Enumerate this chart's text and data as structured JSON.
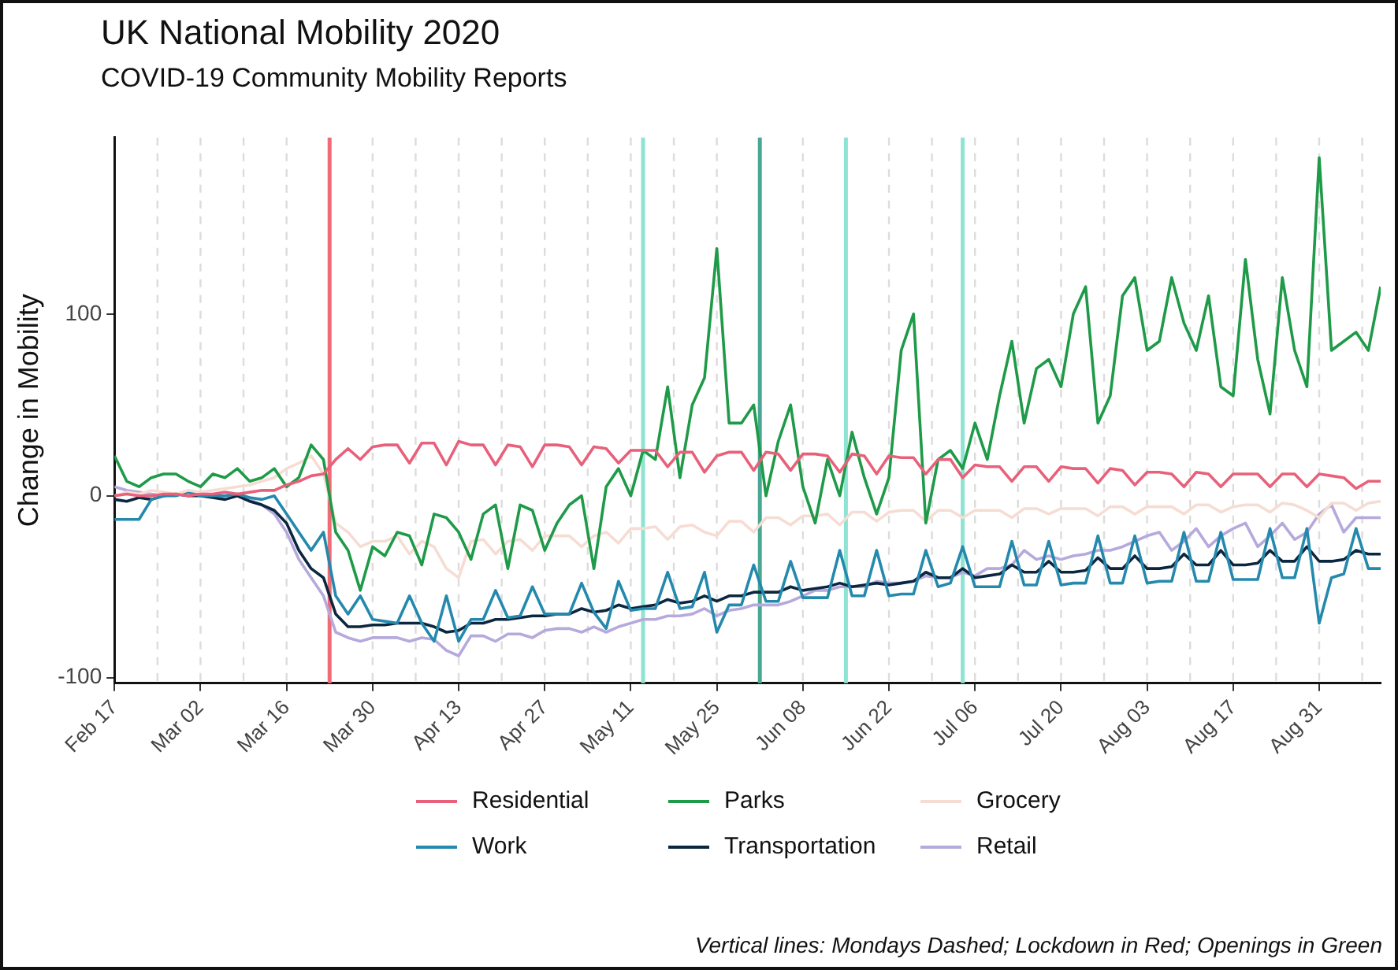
{
  "chart_data": {
    "type": "line",
    "title": "UK National Mobility 2020",
    "subtitle": "COVID-19 Community Mobility Reports",
    "ylabel": "Change in Mobility",
    "x": [
      "2020-02-17",
      "2020-02-19",
      "2020-02-21",
      "2020-02-23",
      "2020-02-25",
      "2020-02-27",
      "2020-02-29",
      "2020-03-02",
      "2020-03-04",
      "2020-03-06",
      "2020-03-08",
      "2020-03-10",
      "2020-03-12",
      "2020-03-14",
      "2020-03-16",
      "2020-03-18",
      "2020-03-20",
      "2020-03-22",
      "2020-03-24",
      "2020-03-26",
      "2020-03-28",
      "2020-03-30",
      "2020-04-01",
      "2020-04-03",
      "2020-04-05",
      "2020-04-07",
      "2020-04-09",
      "2020-04-11",
      "2020-04-13",
      "2020-04-15",
      "2020-04-17",
      "2020-04-19",
      "2020-04-21",
      "2020-04-23",
      "2020-04-25",
      "2020-04-27",
      "2020-04-29",
      "2020-05-01",
      "2020-05-03",
      "2020-05-05",
      "2020-05-07",
      "2020-05-09",
      "2020-05-11",
      "2020-05-13",
      "2020-05-15",
      "2020-05-17",
      "2020-05-19",
      "2020-05-21",
      "2020-05-23",
      "2020-05-25",
      "2020-05-27",
      "2020-05-29",
      "2020-05-31",
      "2020-06-02",
      "2020-06-04",
      "2020-06-06",
      "2020-06-08",
      "2020-06-10",
      "2020-06-12",
      "2020-06-14",
      "2020-06-16",
      "2020-06-18",
      "2020-06-20",
      "2020-06-22",
      "2020-06-24",
      "2020-06-26",
      "2020-06-28",
      "2020-06-30",
      "2020-07-02",
      "2020-07-04",
      "2020-07-06",
      "2020-07-08",
      "2020-07-10",
      "2020-07-12",
      "2020-07-14",
      "2020-07-16",
      "2020-07-18",
      "2020-07-20",
      "2020-07-22",
      "2020-07-24",
      "2020-07-26",
      "2020-07-28",
      "2020-07-30",
      "2020-08-01",
      "2020-08-03",
      "2020-08-05",
      "2020-08-07",
      "2020-08-09",
      "2020-08-11",
      "2020-08-13",
      "2020-08-15",
      "2020-08-17",
      "2020-08-19",
      "2020-08-21",
      "2020-08-23",
      "2020-08-25",
      "2020-08-27",
      "2020-08-29",
      "2020-08-31",
      "2020-09-02",
      "2020-09-04",
      "2020-09-06",
      "2020-09-08",
      "2020-09-10"
    ],
    "series": [
      {
        "name": "Residential",
        "color": "#e8607a",
        "values": [
          0,
          1,
          0,
          0,
          1,
          1,
          0,
          1,
          1,
          2,
          1,
          2,
          3,
          3,
          6,
          8,
          11,
          12,
          20,
          26,
          20,
          27,
          28,
          28,
          18,
          29,
          29,
          17,
          30,
          28,
          28,
          17,
          28,
          27,
          16,
          28,
          28,
          27,
          17,
          27,
          26,
          18,
          25,
          25,
          25,
          16,
          24,
          24,
          13,
          22,
          24,
          24,
          14,
          24,
          23,
          14,
          23,
          23,
          22,
          13,
          23,
          22,
          12,
          22,
          21,
          21,
          12,
          20,
          20,
          10,
          17,
          16,
          16,
          8,
          16,
          16,
          8,
          16,
          15,
          15,
          7,
          15,
          14,
          6,
          13,
          13,
          12,
          5,
          13,
          12,
          5,
          12,
          12,
          12,
          5,
          12,
          12,
          5,
          12,
          11,
          10,
          4,
          8,
          8
        ]
      },
      {
        "name": "Parks",
        "color": "#1e9a48",
        "values": [
          22,
          8,
          5,
          10,
          12,
          12,
          8,
          5,
          12,
          10,
          15,
          8,
          10,
          15,
          5,
          10,
          28,
          20,
          -20,
          -30,
          -52,
          -28,
          -33,
          -20,
          -22,
          -38,
          -10,
          -12,
          -20,
          -35,
          -10,
          -5,
          -40,
          -5,
          -8,
          -30,
          -15,
          -5,
          0,
          -40,
          5,
          15,
          0,
          25,
          20,
          60,
          10,
          50,
          65,
          136,
          40,
          40,
          50,
          0,
          30,
          50,
          5,
          -15,
          20,
          0,
          35,
          10,
          -10,
          10,
          80,
          100,
          -15,
          20,
          25,
          15,
          40,
          20,
          55,
          85,
          40,
          70,
          75,
          60,
          100,
          115,
          40,
          55,
          110,
          120,
          80,
          85,
          120,
          95,
          80,
          110,
          60,
          55,
          130,
          75,
          45,
          120,
          80,
          60,
          186,
          80,
          85,
          90,
          80,
          115
        ]
      },
      {
        "name": "Grocery",
        "color": "#f6ddd3",
        "values": [
          0,
          2,
          1,
          3,
          2,
          1,
          3,
          2,
          3,
          4,
          5,
          6,
          8,
          10,
          15,
          18,
          22,
          12,
          -15,
          -20,
          -28,
          -25,
          -25,
          -22,
          -32,
          -25,
          -28,
          -40,
          -45,
          -25,
          -24,
          -32,
          -25,
          -24,
          -30,
          -22,
          -22,
          -22,
          -28,
          -22,
          -20,
          -26,
          -18,
          -18,
          -17,
          -24,
          -17,
          -16,
          -20,
          -22,
          -14,
          -14,
          -20,
          -12,
          -12,
          -16,
          -11,
          -11,
          -10,
          -16,
          -9,
          -9,
          -14,
          -9,
          -8,
          -8,
          -14,
          -8,
          -8,
          -12,
          -8,
          -8,
          -8,
          -12,
          -7,
          -7,
          -10,
          -7,
          -7,
          -7,
          -11,
          -6,
          -6,
          -10,
          -6,
          -6,
          -6,
          -10,
          -5,
          -5,
          -9,
          -6,
          -5,
          -5,
          -9,
          -4,
          -5,
          -8,
          -12,
          -4,
          -4,
          -8,
          -4,
          -3
        ]
      },
      {
        "name": "Work",
        "color": "#2489ad",
        "values": [
          -13,
          -13,
          -13,
          -2,
          0,
          0,
          2,
          0,
          0,
          0,
          1,
          -1,
          -2,
          0,
          -10,
          -20,
          -30,
          -20,
          -55,
          -65,
          -55,
          -68,
          -69,
          -70,
          -55,
          -70,
          -80,
          -55,
          -80,
          -68,
          -68,
          -52,
          -67,
          -66,
          -50,
          -65,
          -65,
          -65,
          -48,
          -64,
          -73,
          -47,
          -63,
          -62,
          -62,
          -42,
          -62,
          -61,
          -42,
          -75,
          -60,
          -60,
          -38,
          -58,
          -58,
          -36,
          -56,
          -56,
          -56,
          -30,
          -55,
          -55,
          -30,
          -55,
          -54,
          -54,
          -30,
          -50,
          -48,
          -28,
          -50,
          -50,
          -50,
          -25,
          -49,
          -49,
          -25,
          -49,
          -48,
          -48,
          -22,
          -48,
          -48,
          -22,
          -48,
          -47,
          -47,
          -20,
          -47,
          -47,
          -20,
          -46,
          -46,
          -46,
          -18,
          -45,
          -45,
          -18,
          -70,
          -45,
          -43,
          -18,
          -40,
          -40
        ]
      },
      {
        "name": "Transportation",
        "color": "#0b2740",
        "values": [
          -2,
          -3,
          -1,
          -2,
          0,
          1,
          0,
          0,
          -1,
          -2,
          0,
          -3,
          -5,
          -8,
          -15,
          -30,
          -40,
          -45,
          -65,
          -72,
          -72,
          -71,
          -71,
          -70,
          -70,
          -70,
          -72,
          -75,
          -74,
          -70,
          -70,
          -68,
          -68,
          -67,
          -66,
          -66,
          -65,
          -65,
          -62,
          -64,
          -63,
          -60,
          -62,
          -61,
          -60,
          -57,
          -59,
          -58,
          -55,
          -58,
          -55,
          -55,
          -53,
          -53,
          -53,
          -50,
          -52,
          -51,
          -50,
          -48,
          -50,
          -49,
          -48,
          -49,
          -48,
          -47,
          -42,
          -45,
          -45,
          -40,
          -45,
          -44,
          -43,
          -38,
          -42,
          -42,
          -36,
          -42,
          -42,
          -41,
          -34,
          -40,
          -40,
          -33,
          -40,
          -40,
          -39,
          -32,
          -38,
          -38,
          -30,
          -38,
          -38,
          -37,
          -30,
          -36,
          -36,
          -28,
          -36,
          -36,
          -35,
          -30,
          -32,
          -32
        ]
      },
      {
        "name": "Retail",
        "color": "#b6a9dc",
        "values": [
          5,
          3,
          2,
          1,
          0,
          1,
          2,
          1,
          0,
          0,
          1,
          -2,
          -5,
          -10,
          -20,
          -35,
          -45,
          -55,
          -75,
          -78,
          -80,
          -78,
          -78,
          -78,
          -80,
          -78,
          -79,
          -85,
          -88,
          -77,
          -77,
          -80,
          -76,
          -76,
          -78,
          -74,
          -73,
          -73,
          -75,
          -72,
          -75,
          -72,
          -70,
          -68,
          -68,
          -66,
          -66,
          -65,
          -62,
          -66,
          -63,
          -62,
          -60,
          -60,
          -60,
          -58,
          -55,
          -52,
          -52,
          -50,
          -50,
          -50,
          -47,
          -48,
          -48,
          -47,
          -44,
          -45,
          -45,
          -42,
          -44,
          -40,
          -40,
          -38,
          -30,
          -35,
          -33,
          -35,
          -33,
          -32,
          -30,
          -30,
          -28,
          -25,
          -22,
          -20,
          -30,
          -25,
          -18,
          -28,
          -22,
          -18,
          -15,
          -28,
          -22,
          -15,
          -24,
          -20,
          -10,
          -5,
          -20,
          -12,
          -12,
          -12
        ]
      }
    ],
    "xlim": [
      "2020-02-17",
      "2020-09-10"
    ],
    "xticks": [
      {
        "value": "2020-02-17",
        "label": "Feb 17"
      },
      {
        "value": "2020-03-02",
        "label": "Mar 02"
      },
      {
        "value": "2020-03-16",
        "label": "Mar 16"
      },
      {
        "value": "2020-03-30",
        "label": "Mar 30"
      },
      {
        "value": "2020-04-13",
        "label": "Apr 13"
      },
      {
        "value": "2020-04-27",
        "label": "Apr 27"
      },
      {
        "value": "2020-05-11",
        "label": "May 11"
      },
      {
        "value": "2020-05-25",
        "label": "May 25"
      },
      {
        "value": "2020-06-08",
        "label": "Jun 08"
      },
      {
        "value": "2020-06-22",
        "label": "Jun 22"
      },
      {
        "value": "2020-07-06",
        "label": "Jul 06"
      },
      {
        "value": "2020-07-20",
        "label": "Jul 20"
      },
      {
        "value": "2020-08-03",
        "label": "Aug 03"
      },
      {
        "value": "2020-08-17",
        "label": "Aug 17"
      },
      {
        "value": "2020-08-31",
        "label": "Aug 31"
      }
    ],
    "ylim": [
      -103,
      197
    ],
    "yticks": [
      -100,
      0,
      100
    ],
    "legend": "bottom",
    "marker": "none",
    "line_style": "solid",
    "ref_lines": [
      {
        "axis": "x",
        "value": "2020-02-24",
        "color": "#dcdcdc",
        "line_style": "dashed"
      },
      {
        "axis": "x",
        "value": "2020-03-02",
        "color": "#dcdcdc",
        "line_style": "dashed"
      },
      {
        "axis": "x",
        "value": "2020-03-09",
        "color": "#dcdcdc",
        "line_style": "dashed"
      },
      {
        "axis": "x",
        "value": "2020-03-16",
        "color": "#dcdcdc",
        "line_style": "dashed"
      },
      {
        "axis": "x",
        "value": "2020-03-30",
        "color": "#dcdcdc",
        "line_style": "dashed"
      },
      {
        "axis": "x",
        "value": "2020-04-06",
        "color": "#dcdcdc",
        "line_style": "dashed"
      },
      {
        "axis": "x",
        "value": "2020-04-13",
        "color": "#dcdcdc",
        "line_style": "dashed"
      },
      {
        "axis": "x",
        "value": "2020-04-20",
        "color": "#dcdcdc",
        "line_style": "dashed"
      },
      {
        "axis": "x",
        "value": "2020-04-27",
        "color": "#dcdcdc",
        "line_style": "dashed"
      },
      {
        "axis": "x",
        "value": "2020-05-04",
        "color": "#dcdcdc",
        "line_style": "dashed"
      },
      {
        "axis": "x",
        "value": "2020-05-11",
        "color": "#dcdcdc",
        "line_style": "dashed"
      },
      {
        "axis": "x",
        "value": "2020-05-18",
        "color": "#dcdcdc",
        "line_style": "dashed"
      },
      {
        "axis": "x",
        "value": "2020-05-25",
        "color": "#dcdcdc",
        "line_style": "dashed"
      },
      {
        "axis": "x",
        "value": "2020-06-08",
        "color": "#dcdcdc",
        "line_style": "dashed"
      },
      {
        "axis": "x",
        "value": "2020-06-15",
        "color": "#dcdcdc",
        "line_style": "dashed"
      },
      {
        "axis": "x",
        "value": "2020-06-22",
        "color": "#dcdcdc",
        "line_style": "dashed"
      },
      {
        "axis": "x",
        "value": "2020-06-29",
        "color": "#dcdcdc",
        "line_style": "dashed"
      },
      {
        "axis": "x",
        "value": "2020-07-06",
        "color": "#dcdcdc",
        "line_style": "dashed"
      },
      {
        "axis": "x",
        "value": "2020-07-13",
        "color": "#dcdcdc",
        "line_style": "dashed"
      },
      {
        "axis": "x",
        "value": "2020-07-20",
        "color": "#dcdcdc",
        "line_style": "dashed"
      },
      {
        "axis": "x",
        "value": "2020-07-27",
        "color": "#dcdcdc",
        "line_style": "dashed"
      },
      {
        "axis": "x",
        "value": "2020-08-03",
        "color": "#dcdcdc",
        "line_style": "dashed"
      },
      {
        "axis": "x",
        "value": "2020-08-10",
        "color": "#dcdcdc",
        "line_style": "dashed"
      },
      {
        "axis": "x",
        "value": "2020-08-17",
        "color": "#dcdcdc",
        "line_style": "dashed"
      },
      {
        "axis": "x",
        "value": "2020-08-24",
        "color": "#dcdcdc",
        "line_style": "dashed"
      },
      {
        "axis": "x",
        "value": "2020-08-31",
        "color": "#dcdcdc",
        "line_style": "dashed"
      },
      {
        "axis": "x",
        "value": "2020-09-07",
        "color": "#dcdcdc",
        "line_style": "dashed"
      },
      {
        "axis": "x",
        "value": "2020-03-23",
        "color": "#ef6b75",
        "line_style": "solid"
      },
      {
        "axis": "x",
        "value": "2020-05-13",
        "color": "#8fe3d2",
        "line_style": "solid"
      },
      {
        "axis": "x",
        "value": "2020-06-01",
        "color": "#4aa892",
        "line_style": "solid"
      },
      {
        "axis": "x",
        "value": "2020-06-15",
        "color": "#8fe3d2",
        "line_style": "solid"
      },
      {
        "axis": "x",
        "value": "2020-07-04",
        "color": "#8fe3d2",
        "line_style": "solid"
      }
    ],
    "annotations": [
      "Vertical lines: Mondays Dashed; Lockdown in Red; Openings in Green"
    ]
  }
}
